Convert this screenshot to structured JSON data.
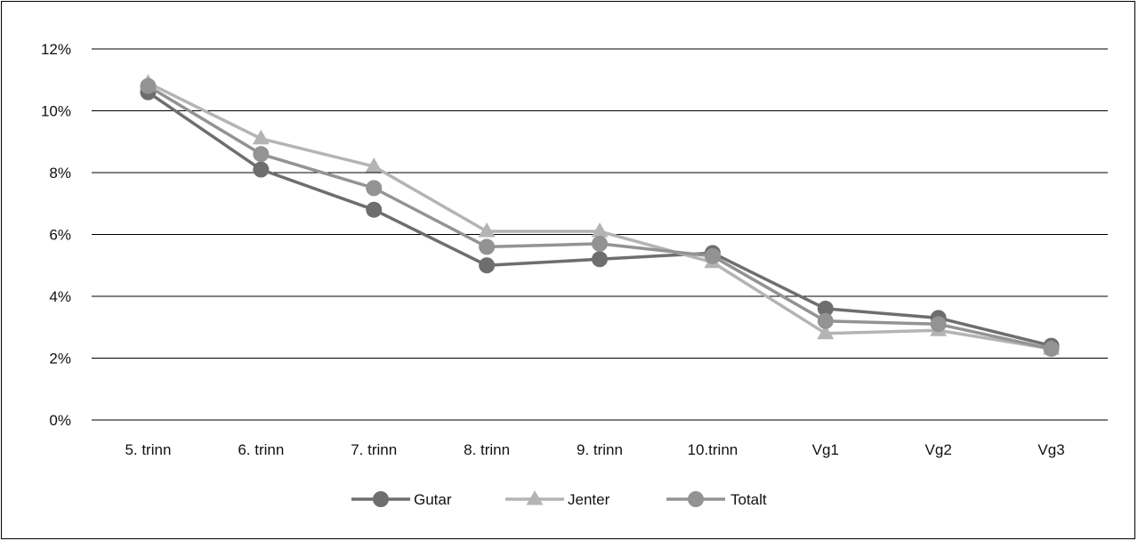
{
  "chart_data": {
    "type": "line",
    "categories": [
      "5. trinn",
      "6. trinn",
      "7. trinn",
      "8. trinn",
      "9. trinn",
      "10.trinn",
      "Vg1",
      "Vg2",
      "Vg3"
    ],
    "series": [
      {
        "name": "Gutar",
        "values": [
          10.6,
          8.1,
          6.8,
          5.0,
          5.2,
          5.4,
          3.6,
          3.3,
          2.4
        ],
        "color": "#6e6e6e",
        "marker": "circle"
      },
      {
        "name": "Jenter",
        "values": [
          10.9,
          9.1,
          8.2,
          6.1,
          6.1,
          5.1,
          2.8,
          2.9,
          2.3
        ],
        "color": "#b4b4b4",
        "marker": "triangle"
      },
      {
        "name": "Totalt",
        "values": [
          10.8,
          8.6,
          7.5,
          5.6,
          5.7,
          5.3,
          3.2,
          3.1,
          2.3
        ],
        "color": "#939393",
        "marker": "circle"
      }
    ],
    "y_ticks": [
      0,
      2,
      4,
      6,
      8,
      10,
      12
    ],
    "y_tick_labels": [
      "0%",
      "2%",
      "4%",
      "6%",
      "8%",
      "10%",
      "12%"
    ],
    "ylim": [
      0,
      12
    ],
    "grid": true,
    "legend_position": "bottom"
  }
}
